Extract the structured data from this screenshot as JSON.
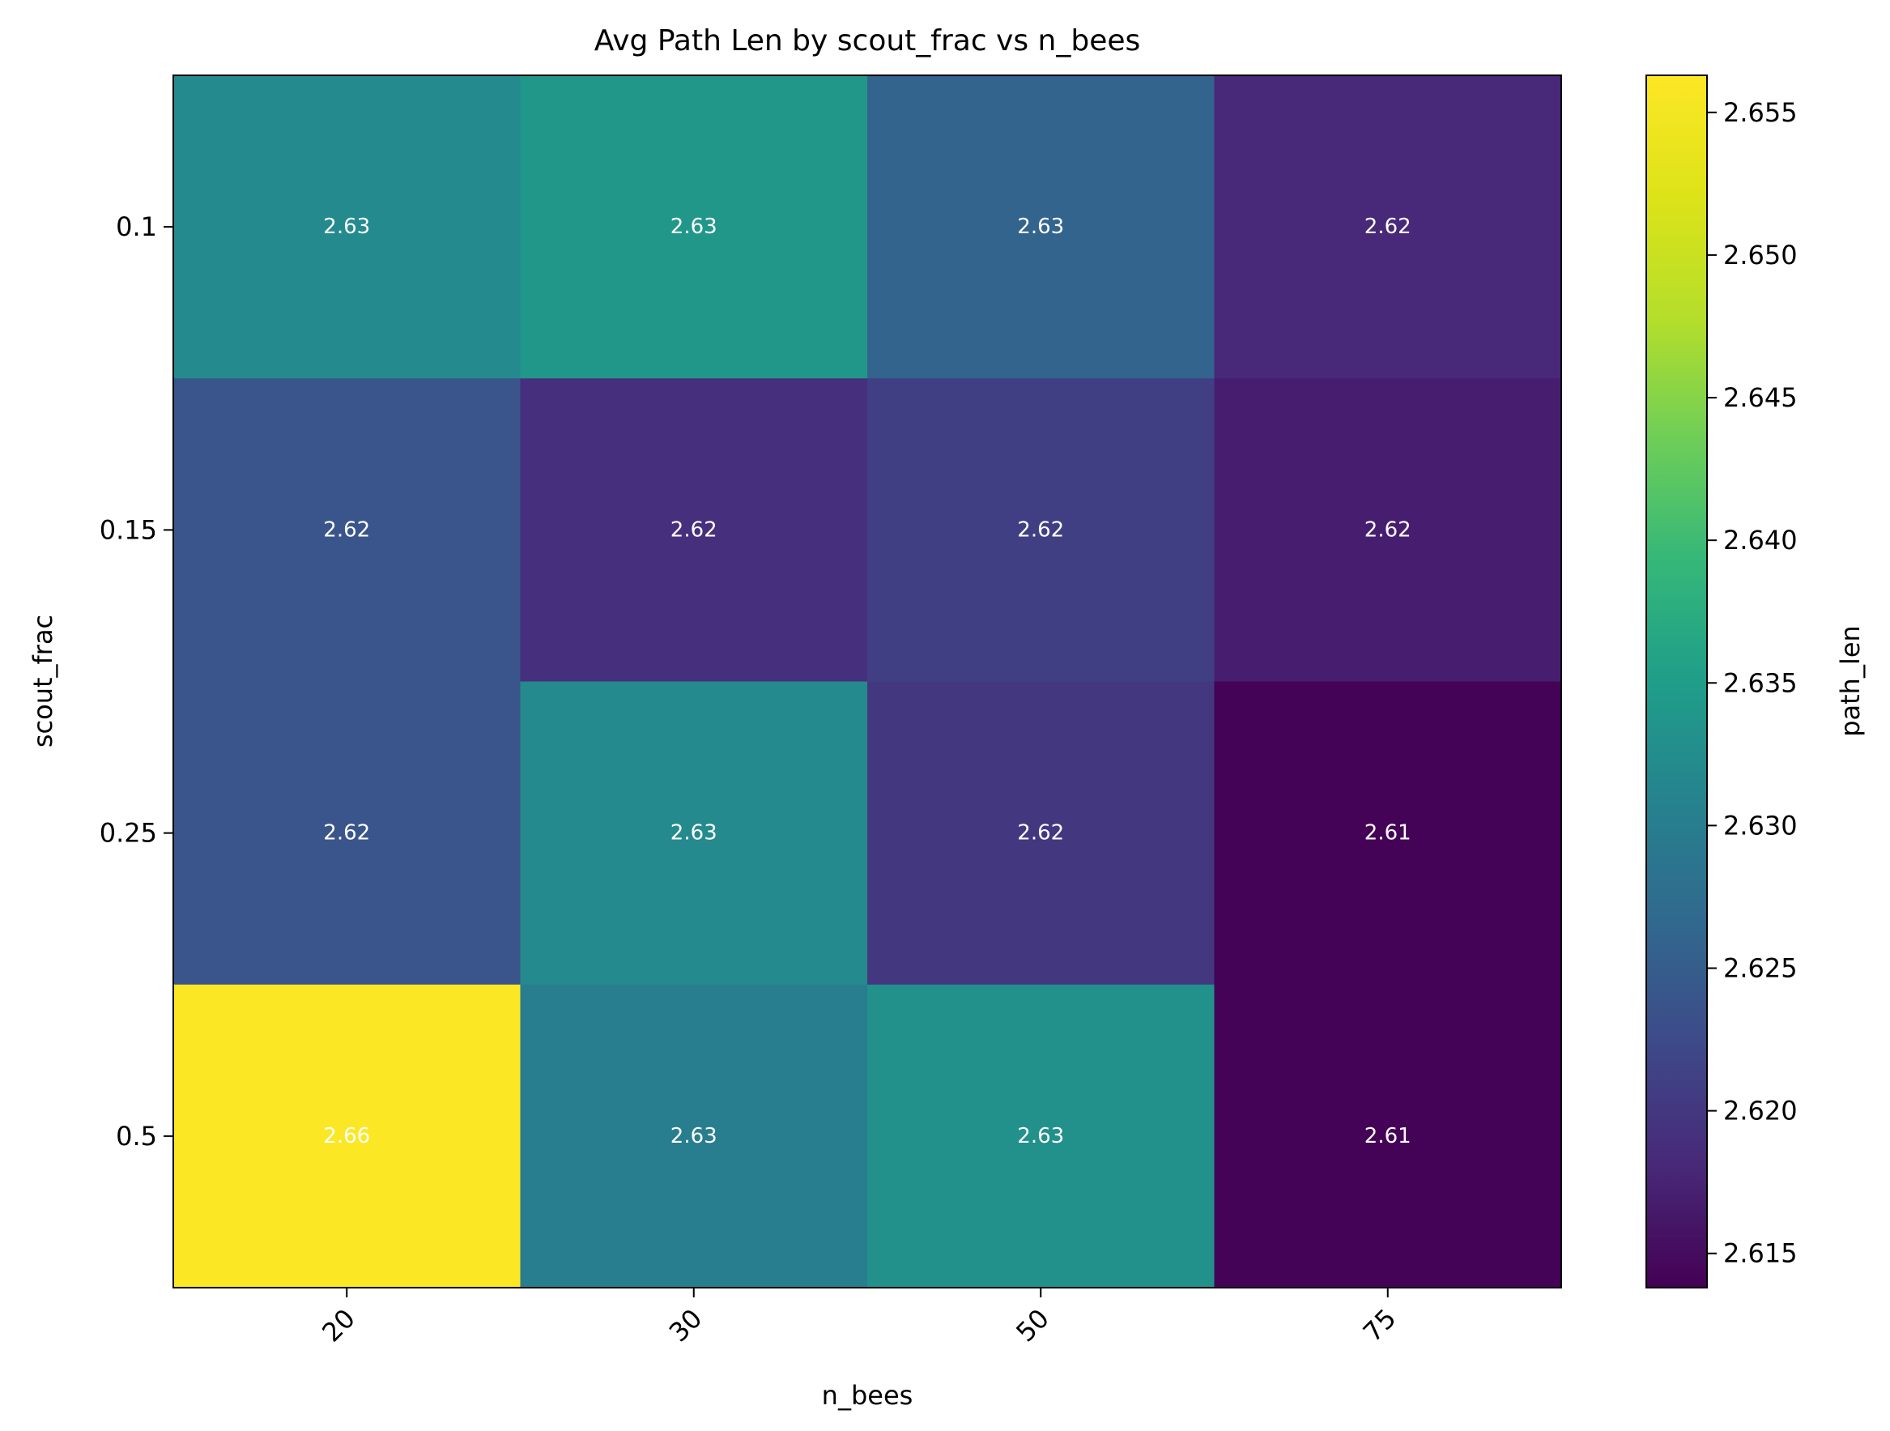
{
  "chart_data": {
    "type": "heatmap",
    "title": "Avg Path Len by scout_frac vs n_bees",
    "xlabel": "n_bees",
    "ylabel": "scout_frac",
    "x_categories": [
      "20",
      "30",
      "50",
      "75"
    ],
    "y_categories": [
      "0.1",
      "0.15",
      "0.25",
      "0.5"
    ],
    "values": [
      [
        2.632,
        2.634,
        2.626,
        2.618
      ],
      [
        2.624,
        2.619,
        2.621,
        2.617
      ],
      [
        2.624,
        2.632,
        2.62,
        2.614
      ],
      [
        2.656,
        2.63,
        2.633,
        2.614
      ]
    ],
    "value_labels": [
      [
        "2.63",
        "2.63",
        "2.63",
        "2.62"
      ],
      [
        "2.62",
        "2.62",
        "2.62",
        "2.62"
      ],
      [
        "2.62",
        "2.63",
        "2.62",
        "2.61"
      ],
      [
        "2.66",
        "2.63",
        "2.63",
        "2.61"
      ]
    ],
    "colorbar": {
      "label": "path_len",
      "range": [
        2.6138,
        2.6563
      ],
      "ticks": [
        "2.615",
        "2.620",
        "2.625",
        "2.630",
        "2.635",
        "2.640",
        "2.645",
        "2.650",
        "2.655"
      ],
      "colormap": "viridis"
    },
    "grid": false
  }
}
